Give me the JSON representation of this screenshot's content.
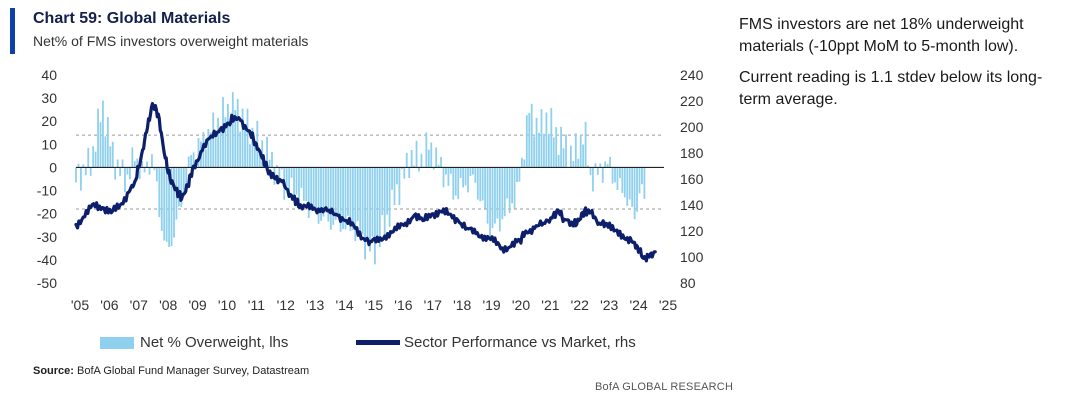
{
  "header": {
    "title": "Chart 59: Global Materials",
    "subtitle": "Net% of FMS investors overweight materials"
  },
  "commentary": {
    "p1": "FMS investors are net 18% underweight materials (-10ppt MoM to 5-month low).",
    "p2": "Current reading is 1.1 stdev below its long-term average."
  },
  "source": {
    "label": "Source:",
    "text": "BofA Global Fund Manager Survey, Datastream"
  },
  "footer": "BofA GLOBAL RESEARCH",
  "colors": {
    "bars": "#8fd0ee",
    "line": "#0d1f6b",
    "accent": "#0f3fa8"
  },
  "chart_data": {
    "type": "bar+line",
    "x_tick_labels": [
      "'05",
      "'06",
      "'07",
      "'08",
      "'09",
      "'10",
      "'11",
      "'12",
      "'13",
      "'14",
      "'15",
      "'16",
      "'17",
      "'18",
      "'19",
      "'20",
      "'21",
      "'22",
      "'23",
      "'24",
      "'25"
    ],
    "x_range": [
      2005,
      2025
    ],
    "y_left": {
      "range": [
        -50,
        40
      ],
      "ticks": [
        40,
        30,
        20,
        10,
        0,
        -10,
        -20,
        -30,
        -40,
        -50
      ]
    },
    "y_right": {
      "range": [
        80,
        240
      ],
      "ticks": [
        240,
        220,
        200,
        180,
        160,
        140,
        120,
        100,
        80
      ]
    },
    "reference_lines_lhs": [
      14,
      -18
    ],
    "zero_line_lhs": 0,
    "legend": [
      {
        "label": "Net % Overweight, lhs",
        "kind": "bar"
      },
      {
        "label": "Sector Performance vs Market, rhs",
        "kind": "line"
      }
    ],
    "series": [
      {
        "name": "Net % Overweight, lhs",
        "axis": "left",
        "points": [
          [
            2005.0,
            -5
          ],
          [
            2005.5,
            2
          ],
          [
            2005.9,
            27
          ],
          [
            2006.3,
            3
          ],
          [
            2006.7,
            -6
          ],
          [
            2007.0,
            5
          ],
          [
            2007.3,
            -3
          ],
          [
            2007.6,
            5
          ],
          [
            2007.9,
            -25
          ],
          [
            2008.1,
            -37
          ],
          [
            2008.3,
            -30
          ],
          [
            2008.6,
            -15
          ],
          [
            2008.9,
            5
          ],
          [
            2009.2,
            10
          ],
          [
            2009.5,
            15
          ],
          [
            2009.8,
            20
          ],
          [
            2010.1,
            25
          ],
          [
            2010.4,
            27
          ],
          [
            2010.7,
            21
          ],
          [
            2011.0,
            15
          ],
          [
            2011.3,
            10
          ],
          [
            2011.6,
            5
          ],
          [
            2011.9,
            -5
          ],
          [
            2012.2,
            -10
          ],
          [
            2012.5,
            -12
          ],
          [
            2012.8,
            -15
          ],
          [
            2013.1,
            -20
          ],
          [
            2013.4,
            -22
          ],
          [
            2013.7,
            -24
          ],
          [
            2014.0,
            -25
          ],
          [
            2014.3,
            -26
          ],
          [
            2014.6,
            -28
          ],
          [
            2014.9,
            -35
          ],
          [
            2015.2,
            -36
          ],
          [
            2015.5,
            -25
          ],
          [
            2015.8,
            -15
          ],
          [
            2016.1,
            -5
          ],
          [
            2016.4,
            5
          ],
          [
            2016.7,
            3
          ],
          [
            2017.0,
            10
          ],
          [
            2017.3,
            3
          ],
          [
            2017.6,
            -5
          ],
          [
            2017.9,
            -12
          ],
          [
            2018.2,
            -8
          ],
          [
            2018.5,
            -5
          ],
          [
            2018.8,
            -15
          ],
          [
            2019.1,
            -28
          ],
          [
            2019.4,
            -24
          ],
          [
            2019.7,
            -18
          ],
          [
            2020.0,
            -12
          ],
          [
            2020.2,
            5
          ],
          [
            2020.4,
            25
          ],
          [
            2020.6,
            20
          ],
          [
            2020.8,
            17
          ],
          [
            2021.0,
            22
          ],
          [
            2021.3,
            15
          ],
          [
            2021.6,
            10
          ],
          [
            2021.9,
            5
          ],
          [
            2022.1,
            10
          ],
          [
            2022.3,
            16
          ],
          [
            2022.5,
            -5
          ],
          [
            2022.8,
            -2
          ],
          [
            2023.1,
            2
          ],
          [
            2023.4,
            -8
          ],
          [
            2023.7,
            -12
          ],
          [
            2024.0,
            -22
          ],
          [
            2024.2,
            -8
          ],
          [
            2024.4,
            -18
          ]
        ]
      },
      {
        "name": "Sector Performance vs Market, rhs",
        "axis": "right",
        "points": [
          [
            2005.0,
            125
          ],
          [
            2005.3,
            131
          ],
          [
            2005.6,
            141
          ],
          [
            2005.9,
            138
          ],
          [
            2006.2,
            134
          ],
          [
            2006.5,
            140
          ],
          [
            2006.8,
            150
          ],
          [
            2007.0,
            158
          ],
          [
            2007.2,
            175
          ],
          [
            2007.4,
            196
          ],
          [
            2007.6,
            218
          ],
          [
            2007.8,
            210
          ],
          [
            2008.0,
            180
          ],
          [
            2008.2,
            160
          ],
          [
            2008.4,
            152
          ],
          [
            2008.6,
            145
          ],
          [
            2008.8,
            155
          ],
          [
            2009.0,
            170
          ],
          [
            2009.3,
            182
          ],
          [
            2009.6,
            193
          ],
          [
            2009.9,
            198
          ],
          [
            2010.2,
            203
          ],
          [
            2010.4,
            208
          ],
          [
            2010.6,
            205
          ],
          [
            2010.9,
            197
          ],
          [
            2011.1,
            188
          ],
          [
            2011.3,
            178
          ],
          [
            2011.5,
            168
          ],
          [
            2011.8,
            160
          ],
          [
            2012.0,
            158
          ],
          [
            2012.3,
            148
          ],
          [
            2012.5,
            142
          ],
          [
            2012.7,
            137
          ],
          [
            2013.0,
            140
          ],
          [
            2013.3,
            135
          ],
          [
            2013.6,
            136
          ],
          [
            2013.9,
            132
          ],
          [
            2014.2,
            128
          ],
          [
            2014.5,
            122
          ],
          [
            2014.8,
            114
          ],
          [
            2015.0,
            112
          ],
          [
            2015.3,
            112
          ],
          [
            2015.6,
            118
          ],
          [
            2015.9,
            121
          ],
          [
            2016.2,
            126
          ],
          [
            2016.5,
            132
          ],
          [
            2016.8,
            128
          ],
          [
            2017.1,
            133
          ],
          [
            2017.4,
            135
          ],
          [
            2017.7,
            133
          ],
          [
            2018.0,
            128
          ],
          [
            2018.3,
            122
          ],
          [
            2018.6,
            118
          ],
          [
            2018.9,
            116
          ],
          [
            2019.2,
            112
          ],
          [
            2019.5,
            107
          ],
          [
            2019.8,
            108
          ],
          [
            2020.1,
            113
          ],
          [
            2020.3,
            120
          ],
          [
            2020.6,
            122
          ],
          [
            2020.9,
            126
          ],
          [
            2021.2,
            130
          ],
          [
            2021.4,
            136
          ],
          [
            2021.6,
            129
          ],
          [
            2021.9,
            124
          ],
          [
            2022.1,
            128
          ],
          [
            2022.3,
            136
          ],
          [
            2022.5,
            134
          ],
          [
            2022.8,
            126
          ],
          [
            2023.0,
            126
          ],
          [
            2023.3,
            120
          ],
          [
            2023.6,
            117
          ],
          [
            2023.9,
            112
          ],
          [
            2024.1,
            108
          ],
          [
            2024.3,
            99
          ],
          [
            2024.5,
            100
          ],
          [
            2024.7,
            104
          ]
        ]
      }
    ]
  }
}
